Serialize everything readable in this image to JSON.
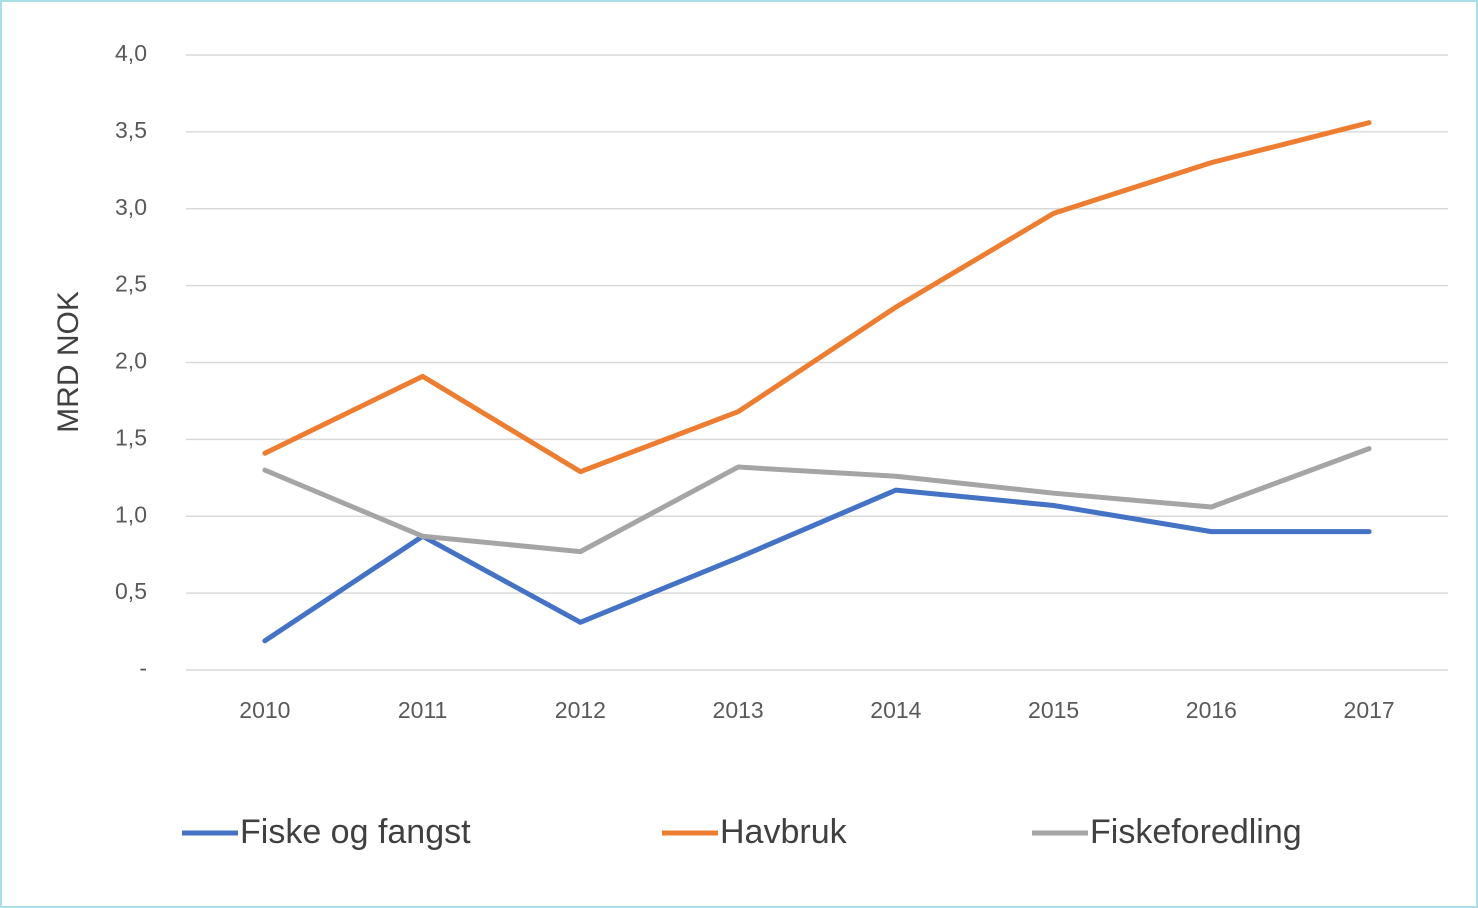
{
  "chart_data": {
    "type": "line",
    "y_label": "MRD NOK",
    "categories": [
      "2010",
      "2011",
      "2012",
      "2013",
      "2014",
      "2015",
      "2016",
      "2017"
    ],
    "series": [
      {
        "name": "Fiske og fangst",
        "color": "#4472c4",
        "values": [
          0.19,
          0.87,
          0.31,
          0.73,
          1.17,
          1.07,
          0.9,
          0.9
        ]
      },
      {
        "name": "Havbruk",
        "color": "#ed7d31",
        "values": [
          1.41,
          1.91,
          1.29,
          1.68,
          2.36,
          2.97,
          3.3,
          3.56
        ]
      },
      {
        "name": "Fiskeforedling",
        "color": "#a5a5a5",
        "values": [
          1.3,
          0.87,
          0.77,
          1.32,
          1.26,
          1.15,
          1.06,
          1.44
        ]
      }
    ],
    "ylim": [
      0,
      4
    ],
    "yticks": [
      {
        "value": 0,
        "label": "-"
      },
      {
        "value": 0.5,
        "label": "0,5"
      },
      {
        "value": 1,
        "label": "1,0"
      },
      {
        "value": 1.5,
        "label": "1,5"
      },
      {
        "value": 2,
        "label": "2,0"
      },
      {
        "value": 2.5,
        "label": "2,5"
      },
      {
        "value": 3,
        "label": "3,0"
      },
      {
        "value": 3.5,
        "label": "3,5"
      },
      {
        "value": 4,
        "label": "4,0"
      }
    ],
    "grid": true,
    "legend": "bottom"
  }
}
